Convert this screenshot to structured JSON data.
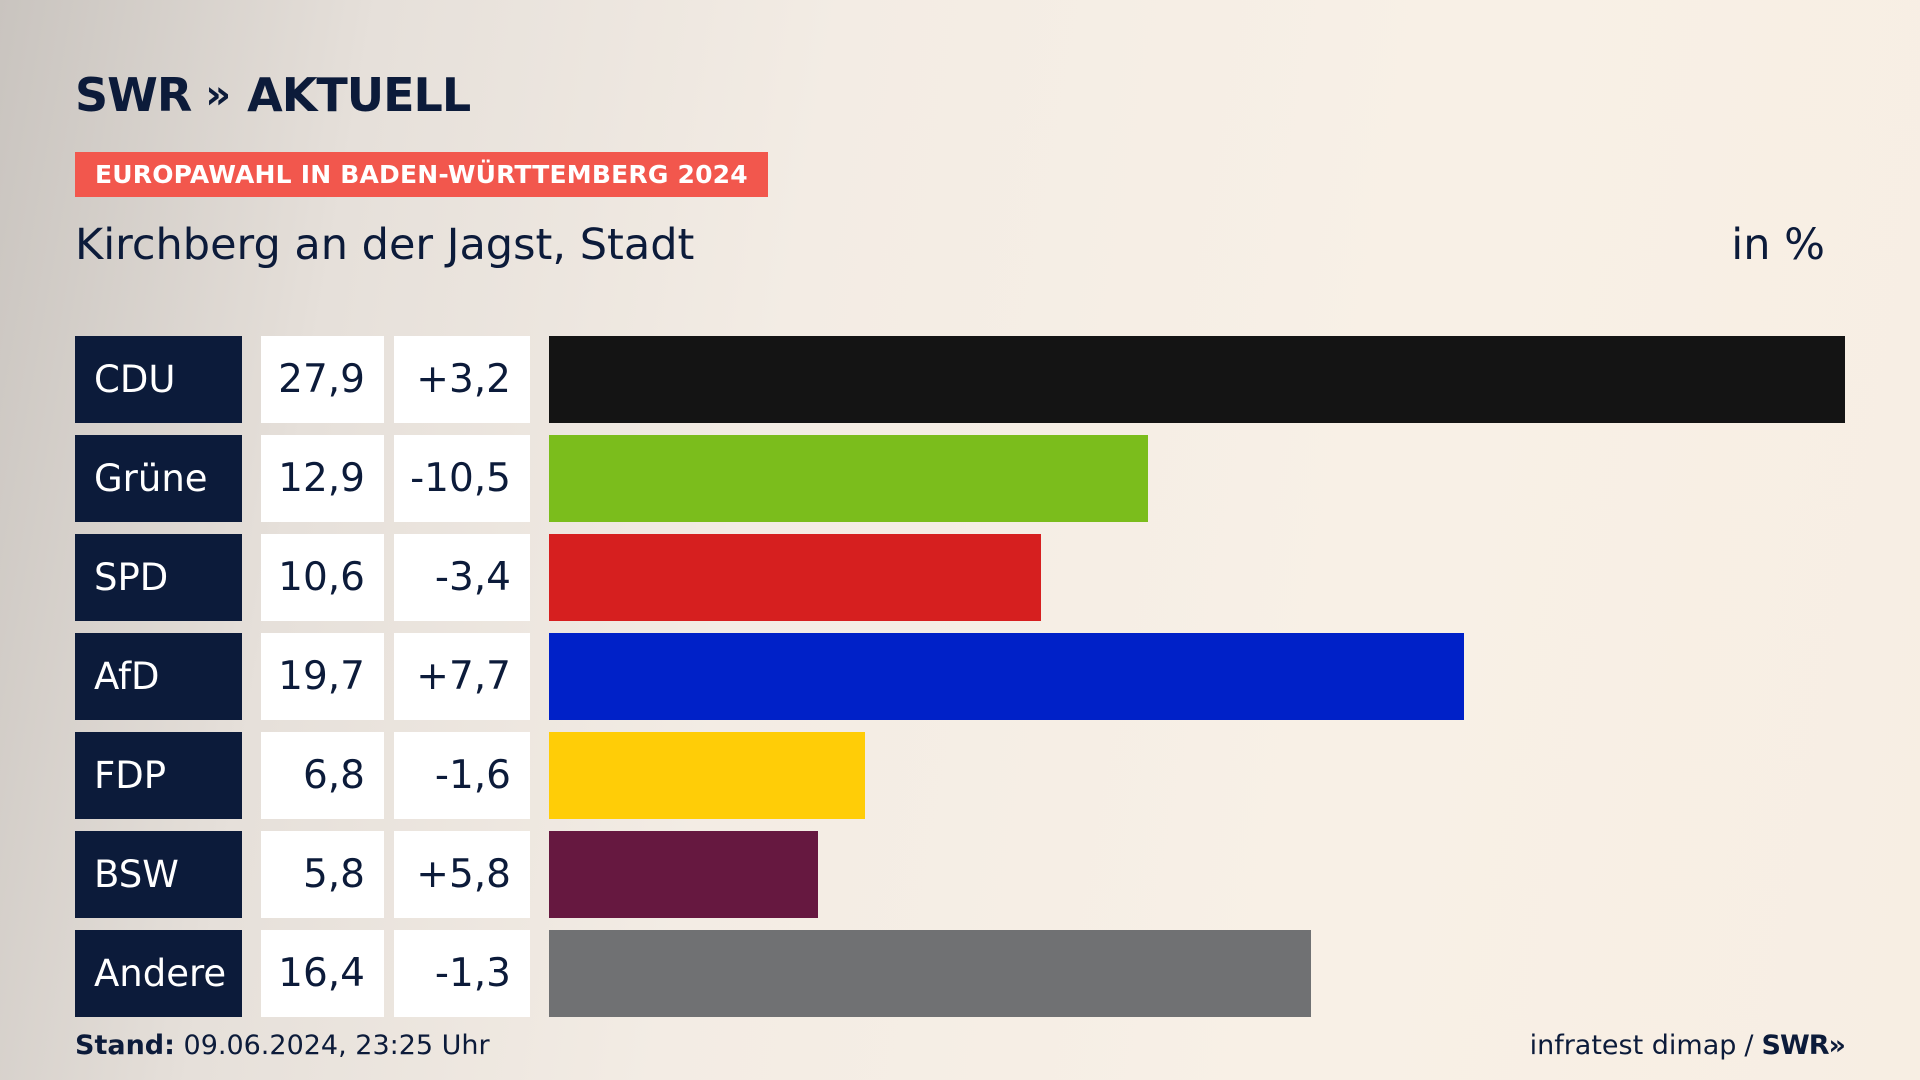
{
  "header": {
    "logo_text": "SWR",
    "logo_chevrons": "»",
    "logo_suffix": "AKTUELL",
    "tag": "EUROPAWAHL IN BADEN-WÜRTTEMBERG 2024",
    "subtitle": "Kirchberg an der Jagst, Stadt",
    "unit": "in %"
  },
  "chart_data": {
    "type": "bar",
    "orientation": "horizontal",
    "title": "Kirchberg an der Jagst, Stadt",
    "unit": "in %",
    "categories": [
      "CDU",
      "Grüne",
      "SPD",
      "AfD",
      "FDP",
      "BSW",
      "Andere"
    ],
    "values": [
      27.9,
      12.9,
      10.6,
      19.7,
      6.8,
      5.8,
      16.4
    ],
    "value_labels": [
      "27,9",
      "12,9",
      "10,6",
      "19,7",
      "6,8",
      "5,8",
      "16,4"
    ],
    "diff_labels": [
      "+3,2",
      "-10,5",
      "-3,4",
      "+7,7",
      "-1,6",
      "+5,8",
      "-1,3"
    ],
    "colors": [
      "#141414",
      "#7bbd1c",
      "#d61f1f",
      "#0021c8",
      "#ffcd07",
      "#661840",
      "#707173"
    ],
    "xlim": [
      0,
      27.9
    ],
    "grid": false
  },
  "footer": {
    "stand_label": "Stand:",
    "stand_value": "09.06.2024, 23:25 Uhr",
    "source": "infratest dimap",
    "separator": "/",
    "source_logo": "SWR",
    "source_logo_chevrons": "»"
  }
}
